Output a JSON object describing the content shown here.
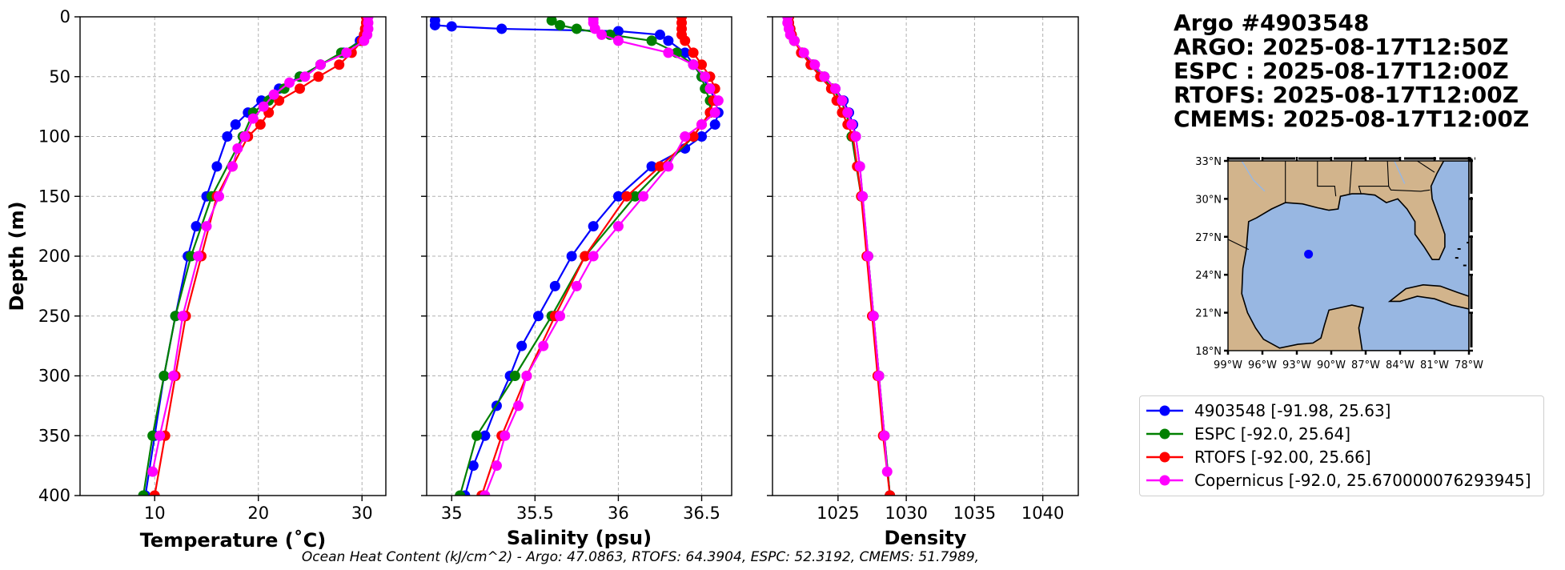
{
  "title_lines": [
    "Argo #4903548",
    "ARGO: 2025-08-17T12:50Z",
    "ESPC : 2025-08-17T12:00Z",
    "RTOFS: 2025-08-17T12:00Z",
    "CMEMS: 2025-08-17T12:00Z"
  ],
  "legend": {
    "items": [
      {
        "label": "4903548 [-91.98, 25.63]",
        "color": "#0000ff"
      },
      {
        "label": "ESPC [-92.0, 25.64]",
        "color": "#008000"
      },
      {
        "label": "RTOFS [-92.00, 25.66]",
        "color": "#ff0000"
      },
      {
        "label": "Copernicus [-92.0, 25.670000076293945]",
        "color": "#ff00ff"
      }
    ]
  },
  "footer": "Ocean Heat Content (kJ/cm^2) - Argo: 47.0863,  RTOFS: 64.3904,  ESPC: 52.3192,  CMEMS: 51.7989,",
  "map": {
    "lat_labels": [
      "33°N",
      "30°N",
      "27°N",
      "24°N",
      "21°N",
      "18°N"
    ],
    "lon_labels": [
      "99°W",
      "96°W",
      "93°W",
      "90°W",
      "87°W",
      "84°W",
      "81°W",
      "78°W"
    ],
    "lat_range": [
      18,
      33
    ],
    "lon_range": [
      -99,
      -78
    ],
    "point": {
      "lon": -91.98,
      "lat": 25.63
    },
    "ocean_color": "#98b7e2",
    "land_color": "#d2b48c",
    "point_color": "#0000ff"
  },
  "chart_data": [
    {
      "type": "line",
      "xlabel": "Temperature (˚C)",
      "ylabel": "Depth (m)",
      "xlim": [
        2.8,
        32.3
      ],
      "ylim": [
        400,
        0
      ],
      "xticks": [
        10,
        20,
        30
      ],
      "yticks": [
        0,
        50,
        100,
        150,
        200,
        250,
        300,
        350,
        400
      ],
      "series": [
        {
          "name": "4903548",
          "color": "#0000ff",
          "depth": [
            0,
            5,
            10,
            15,
            20,
            30,
            40,
            50,
            60,
            70,
            80,
            90,
            100,
            125,
            150,
            175,
            200,
            250,
            300,
            350,
            400
          ],
          "values": [
            30.5,
            30.5,
            30.4,
            30.2,
            29.8,
            28.2,
            26.0,
            24.0,
            22.0,
            20.3,
            19.0,
            17.8,
            17.0,
            16.0,
            15.0,
            14.0,
            13.2,
            12.0,
            10.9,
            10.0,
            9.1
          ]
        },
        {
          "name": "ESPC",
          "color": "#008000",
          "depth": [
            0,
            5,
            10,
            15,
            20,
            30,
            40,
            50,
            60,
            70,
            80,
            100,
            150,
            200,
            250,
            300,
            350,
            400
          ],
          "values": [
            30.5,
            30.5,
            30.4,
            30.3,
            30.0,
            28.0,
            26.0,
            24.0,
            22.5,
            21.0,
            19.5,
            18.5,
            15.5,
            13.5,
            12.0,
            10.9,
            9.8,
            8.9
          ]
        },
        {
          "name": "RTOFS",
          "color": "#ff0000",
          "depth": [
            0,
            5,
            10,
            15,
            20,
            30,
            40,
            50,
            60,
            70,
            80,
            90,
            100,
            125,
            150,
            200,
            250,
            300,
            350,
            400
          ],
          "values": [
            30.4,
            30.4,
            30.3,
            30.2,
            30.0,
            29.0,
            27.8,
            25.8,
            24.0,
            22.0,
            21.0,
            20.2,
            19.0,
            17.5,
            16.0,
            14.5,
            13.0,
            12.0,
            11.0,
            10.0
          ]
        },
        {
          "name": "Copernicus",
          "color": "#ff00ff",
          "depth": [
            0,
            5,
            10,
            15,
            20,
            30,
            40,
            50,
            55,
            65,
            75,
            85,
            100,
            110,
            125,
            150,
            175,
            200,
            250,
            300,
            350,
            380
          ],
          "values": [
            30.6,
            30.6,
            30.6,
            30.5,
            30.2,
            28.5,
            26.0,
            24.5,
            23.0,
            21.5,
            20.5,
            19.5,
            18.7,
            18.0,
            17.5,
            16.2,
            15.0,
            14.2,
            12.7,
            11.8,
            10.5,
            9.8
          ]
        }
      ]
    },
    {
      "type": "line",
      "xlabel": "Salinity (psu)",
      "ylabel": "",
      "xlim": [
        34.85,
        36.68
      ],
      "ylim": [
        400,
        0
      ],
      "xticks": [
        35.0,
        35.5,
        36.0,
        36.5
      ],
      "yticks": [
        0,
        50,
        100,
        150,
        200,
        250,
        300,
        350,
        400
      ],
      "series": [
        {
          "name": "4903548",
          "color": "#0000ff",
          "depth": [
            3,
            7,
            8,
            10,
            12,
            15,
            20,
            30,
            40,
            50,
            60,
            70,
            80,
            90,
            100,
            110,
            125,
            150,
            175,
            200,
            225,
            250,
            275,
            300,
            325,
            350,
            375,
            400
          ],
          "values": [
            34.9,
            34.9,
            35.0,
            35.3,
            36.0,
            36.25,
            36.3,
            36.4,
            36.45,
            36.5,
            36.55,
            36.58,
            36.6,
            36.58,
            36.5,
            36.4,
            36.2,
            36.0,
            35.85,
            35.72,
            35.62,
            35.52,
            35.42,
            35.35,
            35.27,
            35.2,
            35.13,
            35.08
          ]
        },
        {
          "name": "ESPC",
          "color": "#008000",
          "depth": [
            3,
            7,
            10,
            15,
            20,
            30,
            40,
            50,
            60,
            70,
            80,
            100,
            150,
            200,
            250,
            300,
            350,
            400
          ],
          "values": [
            35.6,
            35.65,
            35.75,
            35.95,
            36.2,
            36.35,
            36.45,
            36.5,
            36.52,
            36.55,
            36.55,
            36.45,
            36.1,
            35.8,
            35.6,
            35.38,
            35.15,
            35.05
          ]
        },
        {
          "name": "RTOFS",
          "color": "#ff0000",
          "depth": [
            0,
            5,
            10,
            15,
            20,
            30,
            40,
            50,
            60,
            70,
            80,
            90,
            100,
            125,
            150,
            200,
            250,
            300,
            350,
            400
          ],
          "values": [
            36.38,
            36.38,
            36.38,
            36.38,
            36.4,
            36.45,
            36.5,
            36.55,
            36.58,
            36.57,
            36.55,
            36.5,
            36.45,
            36.25,
            36.05,
            35.8,
            35.62,
            35.45,
            35.3,
            35.18
          ]
        },
        {
          "name": "Copernicus",
          "color": "#ff00ff",
          "depth": [
            2,
            5,
            10,
            15,
            20,
            30,
            40,
            50,
            60,
            70,
            80,
            90,
            100,
            125,
            150,
            175,
            200,
            225,
            250,
            275,
            300,
            325,
            350,
            375,
            400
          ],
          "values": [
            35.85,
            35.85,
            35.86,
            35.9,
            36.0,
            36.3,
            36.45,
            36.52,
            36.55,
            36.6,
            36.58,
            36.5,
            36.4,
            36.3,
            36.15,
            36.0,
            35.85,
            35.75,
            35.65,
            35.55,
            35.45,
            35.4,
            35.32,
            35.27,
            35.2
          ]
        }
      ]
    },
    {
      "type": "line",
      "xlabel": "Density",
      "ylabel": "",
      "xlim": [
        1020.2,
        1042.6
      ],
      "ylim": [
        400,
        0
      ],
      "xticks": [
        1025,
        1030,
        1035,
        1040
      ],
      "yticks": [
        0,
        50,
        100,
        150,
        200,
        250,
        300,
        350,
        400
      ],
      "series": [
        {
          "name": "4903548",
          "color": "#0000ff",
          "depth": [
            0,
            5,
            10,
            15,
            20,
            30,
            40,
            50,
            60,
            70,
            80,
            90,
            100,
            125,
            150,
            200,
            250,
            300,
            350,
            400
          ],
          "values": [
            1021.4,
            1021.4,
            1021.5,
            1021.6,
            1021.8,
            1022.4,
            1023.2,
            1024.0,
            1024.8,
            1025.4,
            1025.8,
            1026.1,
            1026.3,
            1026.6,
            1026.8,
            1027.2,
            1027.6,
            1028.0,
            1028.4,
            1028.8
          ]
        },
        {
          "name": "ESPC",
          "color": "#008000",
          "depth": [
            0,
            10,
            20,
            30,
            40,
            50,
            60,
            70,
            80,
            100,
            150,
            200,
            250,
            300,
            350,
            400
          ],
          "values": [
            1021.4,
            1021.5,
            1021.8,
            1022.4,
            1023.0,
            1023.8,
            1024.6,
            1025.2,
            1025.6,
            1026.0,
            1026.7,
            1027.2,
            1027.6,
            1028.0,
            1028.4,
            1028.8
          ]
        },
        {
          "name": "RTOFS",
          "color": "#ff0000",
          "depth": [
            0,
            5,
            10,
            15,
            20,
            30,
            40,
            50,
            60,
            70,
            80,
            90,
            100,
            125,
            150,
            200,
            250,
            300,
            350,
            400
          ],
          "values": [
            1021.4,
            1021.4,
            1021.5,
            1021.6,
            1021.8,
            1022.3,
            1023.0,
            1023.7,
            1024.5,
            1024.9,
            1025.3,
            1025.7,
            1026.1,
            1026.4,
            1026.7,
            1027.1,
            1027.5,
            1027.9,
            1028.3,
            1028.8
          ]
        },
        {
          "name": "Copernicus",
          "color": "#ff00ff",
          "depth": [
            0,
            5,
            10,
            15,
            20,
            30,
            40,
            50,
            60,
            70,
            80,
            90,
            100,
            125,
            150,
            200,
            250,
            300,
            350,
            380
          ],
          "values": [
            1021.3,
            1021.3,
            1021.4,
            1021.5,
            1021.8,
            1022.5,
            1023.3,
            1024.0,
            1024.8,
            1025.3,
            1025.7,
            1026.0,
            1026.3,
            1026.6,
            1026.8,
            1027.2,
            1027.6,
            1028.0,
            1028.4,
            1028.6
          ]
        }
      ]
    }
  ]
}
